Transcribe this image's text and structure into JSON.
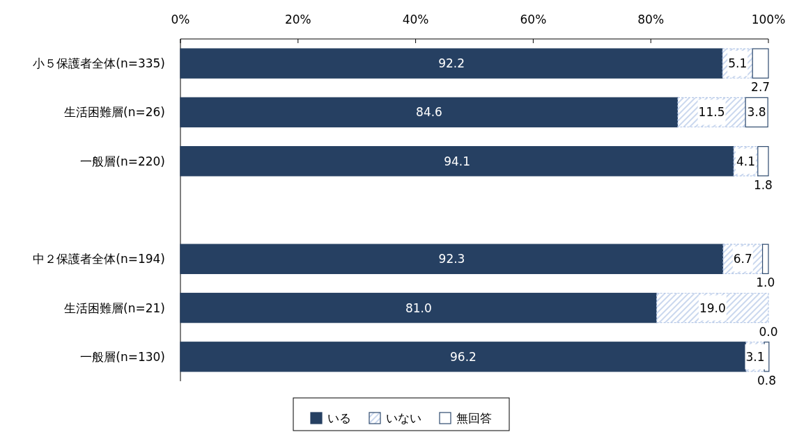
{
  "chart_data": {
    "type": "bar",
    "orientation": "horizontal",
    "stacked": true,
    "categories": [
      "小５保護者全体(n=335)",
      "生活困難層(n=26)",
      "一般層(n=220)",
      null,
      "中２保護者全体(n=194)",
      "生活困難層(n=21)",
      "一般層(n=130)"
    ],
    "series": [
      {
        "name": "いる",
        "color": "#264062",
        "values": [
          92.2,
          84.6,
          94.1,
          null,
          92.3,
          81.0,
          96.2
        ],
        "value_labels": [
          "92.2",
          "84.6",
          "94.1",
          null,
          "92.3",
          "81.0",
          "96.2"
        ]
      },
      {
        "name": "いない",
        "color": "#b4c7e7",
        "values": [
          5.1,
          11.5,
          4.1,
          null,
          6.7,
          19.0,
          3.1
        ],
        "value_labels": [
          "5.1",
          "11.5",
          "4.1",
          null,
          "6.7",
          "19.0",
          "3.1"
        ]
      },
      {
        "name": "無回答",
        "color": "#ffffff",
        "values": [
          2.7,
          3.8,
          1.8,
          null,
          1.0,
          0.0,
          0.8
        ],
        "value_labels": [
          "2.7",
          "3.8",
          "1.8",
          null,
          "1.0",
          "0.0",
          "0.8"
        ]
      }
    ],
    "xlim": [
      0,
      100
    ],
    "xticks": [
      {
        "value": 0,
        "label": "0%"
      },
      {
        "value": 20,
        "label": "20%"
      },
      {
        "value": 40,
        "label": "40%"
      },
      {
        "value": 60,
        "label": "60%"
      },
      {
        "value": 80,
        "label": "80%"
      },
      {
        "value": 100,
        "label": "100%"
      }
    ],
    "legend": "bottom"
  }
}
